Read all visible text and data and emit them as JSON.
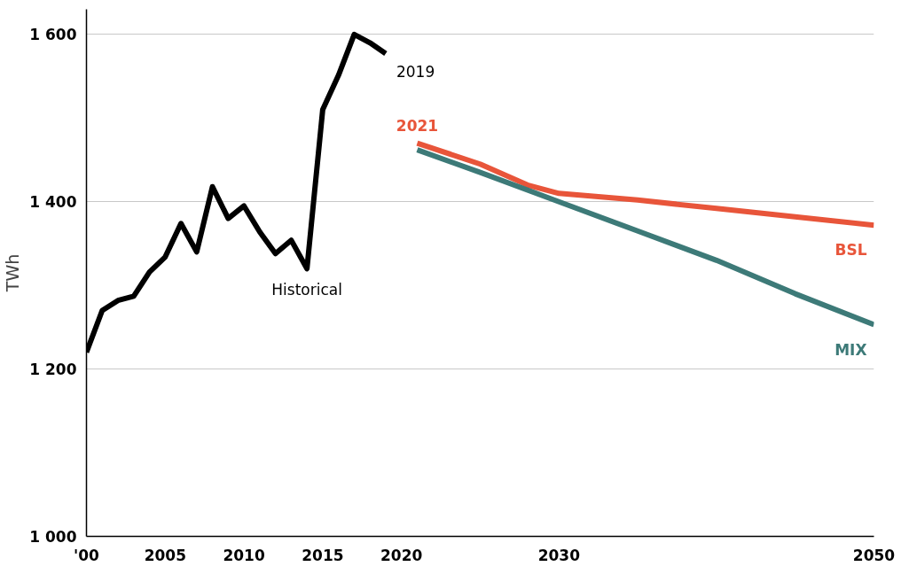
{
  "chart_data": {
    "type": "line",
    "ylabel": "TWh",
    "series": [
      {
        "color": "#000000",
        "x": [
          2000,
          2001,
          2002,
          2003,
          2004,
          2005,
          2006,
          2007,
          2008,
          2009,
          2010,
          2011,
          2012,
          2013,
          2014,
          2015,
          2016,
          2017,
          2018,
          2019
        ],
        "values": [
          1220,
          1270,
          1282,
          1287,
          1316,
          1334,
          1374,
          1340,
          1418,
          1380,
          1395,
          1364,
          1338,
          1354,
          1320,
          1510,
          1551,
          1600,
          1590,
          1577
        ]
      },
      {
        "color": "#e8553a",
        "x": [
          2021,
          2025,
          2028,
          2030,
          2035,
          2040,
          2045,
          2050
        ],
        "values": [
          1470,
          1445,
          1420,
          1410,
          1402,
          1392,
          1382,
          1372
        ]
      },
      {
        "color": "#3d7a78",
        "x": [
          2021,
          2025,
          2030,
          2035,
          2040,
          2045,
          2050
        ],
        "values": [
          1462,
          1435,
          1400,
          1365,
          1330,
          1290,
          1253
        ]
      }
    ],
    "annotations": [
      {
        "text": "2019",
        "x": 2019,
        "y": 1577
      },
      {
        "text": "2021",
        "x": 2021,
        "y": 1470
      },
      {
        "text": "Historical",
        "x": 2014,
        "y": 1320
      },
      {
        "text": "BSL",
        "x": 2050,
        "y": 1372
      },
      {
        "text": "MIX",
        "x": 2050,
        "y": 1253
      }
    ],
    "xlim": [
      2000,
      2050
    ],
    "ylim": [
      1000,
      1630
    ],
    "xticks": [
      {
        "value": 2000,
        "label": "'00"
      },
      2005,
      2010,
      2015,
      2020,
      2030,
      2050
    ],
    "yticks": [
      {
        "value": 1000,
        "label": "1 000"
      },
      {
        "value": 1200,
        "label": "1 200"
      },
      {
        "value": 1400,
        "label": "1 400"
      },
      {
        "value": 1600,
        "label": "1 600"
      }
    ],
    "grid": "y",
    "marker": "none",
    "line_style": "solid"
  }
}
